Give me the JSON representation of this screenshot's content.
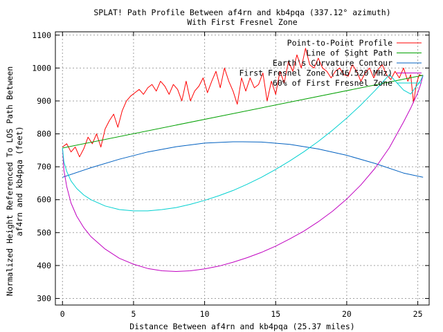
{
  "chart_data": {
    "type": "line",
    "title_line1": "SPLAT! Path Profile Between af4rn and kb4pqa (337.12° azimuth)",
    "title_line2": "With First Fresnel Zone",
    "xlabel": "Distance Between af4rn and kb4pqa (25.37 miles)",
    "ylabel_line1": "Normalized Height Referenced To LOS Path Between",
    "ylabel_line2": "af4rn and kb4pqa (feet)",
    "xlim": [
      -0.5,
      25.8
    ],
    "ylim": [
      280,
      1110
    ],
    "x_ticks": [
      0,
      5,
      10,
      15,
      20,
      25
    ],
    "y_ticks": [
      300,
      400,
      500,
      600,
      700,
      800,
      900,
      1000,
      1100
    ],
    "grid": true,
    "legend_position": "top-right",
    "series": [
      {
        "name": "Point-to-Point Profile",
        "color": "#ff0000",
        "x": [
          0,
          0.3,
          0.6,
          0.9,
          1.2,
          1.5,
          1.8,
          2.1,
          2.4,
          2.7,
          3.0,
          3.3,
          3.6,
          3.9,
          4.2,
          4.5,
          4.8,
          5.1,
          5.4,
          5.7,
          6.0,
          6.3,
          6.6,
          6.9,
          7.2,
          7.5,
          7.8,
          8.1,
          8.4,
          8.7,
          9.0,
          9.3,
          9.6,
          9.9,
          10.2,
          10.5,
          10.8,
          11.1,
          11.4,
          11.7,
          12.0,
          12.3,
          12.6,
          12.9,
          13.2,
          13.5,
          13.8,
          14.1,
          14.4,
          14.7,
          15.0,
          15.3,
          15.6,
          15.9,
          16.2,
          16.5,
          16.8,
          17.1,
          17.4,
          17.7,
          18.0,
          18.3,
          18.6,
          18.9,
          19.2,
          19.5,
          19.8,
          20.1,
          20.4,
          20.7,
          21.0,
          21.3,
          21.6,
          21.9,
          22.2,
          22.5,
          22.8,
          23.1,
          23.4,
          23.7,
          24.0,
          24.3,
          24.5,
          24.7,
          24.9,
          25.1,
          25.37
        ],
        "y": [
          760,
          770,
          745,
          760,
          730,
          755,
          790,
          770,
          800,
          760,
          815,
          840,
          860,
          820,
          870,
          900,
          915,
          925,
          935,
          920,
          940,
          950,
          930,
          960,
          945,
          920,
          950,
          935,
          900,
          960,
          900,
          930,
          945,
          970,
          925,
          960,
          990,
          940,
          1000,
          960,
          930,
          890,
          970,
          930,
          970,
          940,
          950,
          985,
          900,
          960,
          920,
          990,
          955,
          1020,
          990,
          1040,
          1000,
          1060,
          1010,
          1000,
          1030,
          1000,
          990,
          970,
          990,
          1000,
          980,
          975,
          1010,
          990,
          960,
          985,
          1000,
          970,
          995,
          1010,
          980,
          965,
          990,
          970,
          1000,
          960,
          980,
          895,
          950,
          980,
          975
        ]
      },
      {
        "name": "Line of Sight Path",
        "color": "#00a000",
        "x": [
          0,
          25.37
        ],
        "y": [
          757,
          978
        ]
      },
      {
        "name": "Earth's Curvature Contour",
        "color": "#0060c0",
        "x": [
          0,
          2,
          4,
          6,
          8,
          10,
          12,
          12.68,
          14,
          16,
          18,
          20,
          22,
          24,
          25.37
        ],
        "y": [
          668,
          697,
          723,
          745,
          761,
          772,
          776,
          776,
          775,
          768,
          754,
          735,
          710,
          681,
          668
        ]
      },
      {
        "name": "First Fresnel Zone (146.520 MHz)",
        "color": "#c000c0",
        "x": [
          0,
          0.1,
          0.3,
          0.6,
          1,
          1.5,
          2,
          3,
          4,
          5,
          6,
          7,
          8,
          9,
          10,
          11,
          12,
          13,
          14,
          15,
          16,
          17,
          18,
          19,
          20,
          21,
          22,
          23,
          24,
          24.5,
          25,
          25.2,
          25.37
        ],
        "y": [
          757,
          690,
          640,
          590,
          550,
          515,
          488,
          450,
          422,
          404,
          391,
          384,
          382,
          384,
          390,
          398,
          410,
          424,
          440,
          459,
          481,
          505,
          533,
          565,
          602,
          645,
          696,
          758,
          836,
          878,
          925,
          950,
          978
        ]
      },
      {
        "name": "60% of First Fresnel Zone",
        "color": "#00d0d0",
        "x": [
          0,
          0.1,
          0.3,
          0.6,
          1,
          1.5,
          2,
          3,
          4,
          5,
          6,
          7,
          8,
          9,
          10,
          11,
          12,
          13,
          14,
          15,
          16,
          17,
          18,
          19,
          20,
          21,
          22,
          23,
          24,
          24.5,
          25,
          25.2,
          25.37
        ],
        "y": [
          757,
          715,
          686,
          657,
          634,
          614,
          600,
          581,
          570,
          566,
          566,
          570,
          576,
          586,
          598,
          612,
          628,
          647,
          668,
          692,
          718,
          746,
          777,
          811,
          848,
          888,
          932,
          980,
          933,
          921,
          950,
          962,
          978
        ]
      }
    ]
  }
}
